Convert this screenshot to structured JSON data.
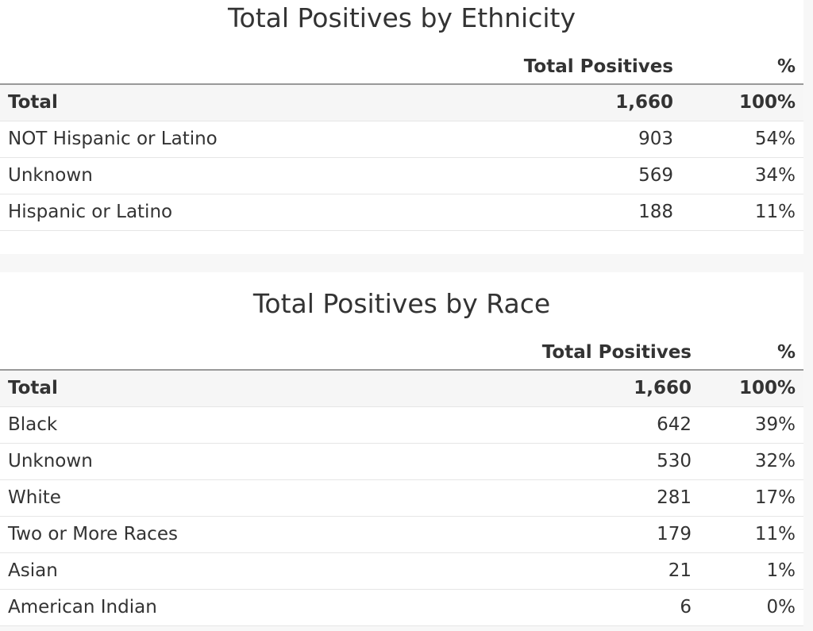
{
  "ethnicity": {
    "title": "Total Positives by Ethnicity",
    "columns": {
      "label": "",
      "count": "Total Positives",
      "pct": "%"
    },
    "rows": [
      {
        "label": "Total",
        "count": "1,660",
        "pct": "100%"
      },
      {
        "label": "NOT Hispanic or Latino",
        "count": "903",
        "pct": "54%"
      },
      {
        "label": "Unknown",
        "count": "569",
        "pct": "34%"
      },
      {
        "label": "Hispanic or Latino",
        "count": "188",
        "pct": "11%"
      }
    ]
  },
  "race": {
    "title": "Total Positives by Race",
    "columns": {
      "label": "",
      "count": "Total Positives",
      "pct": "%"
    },
    "rows": [
      {
        "label": "Total",
        "count": "1,660",
        "pct": "100%"
      },
      {
        "label": "Black",
        "count": "642",
        "pct": "39%"
      },
      {
        "label": "Unknown",
        "count": "530",
        "pct": "32%"
      },
      {
        "label": "White",
        "count": "281",
        "pct": "17%"
      },
      {
        "label": "Two or More Races",
        "count": "179",
        "pct": "11%"
      },
      {
        "label": "Asian",
        "count": "21",
        "pct": "1%"
      },
      {
        "label": "American Indian",
        "count": "6",
        "pct": "0%"
      }
    ]
  }
}
